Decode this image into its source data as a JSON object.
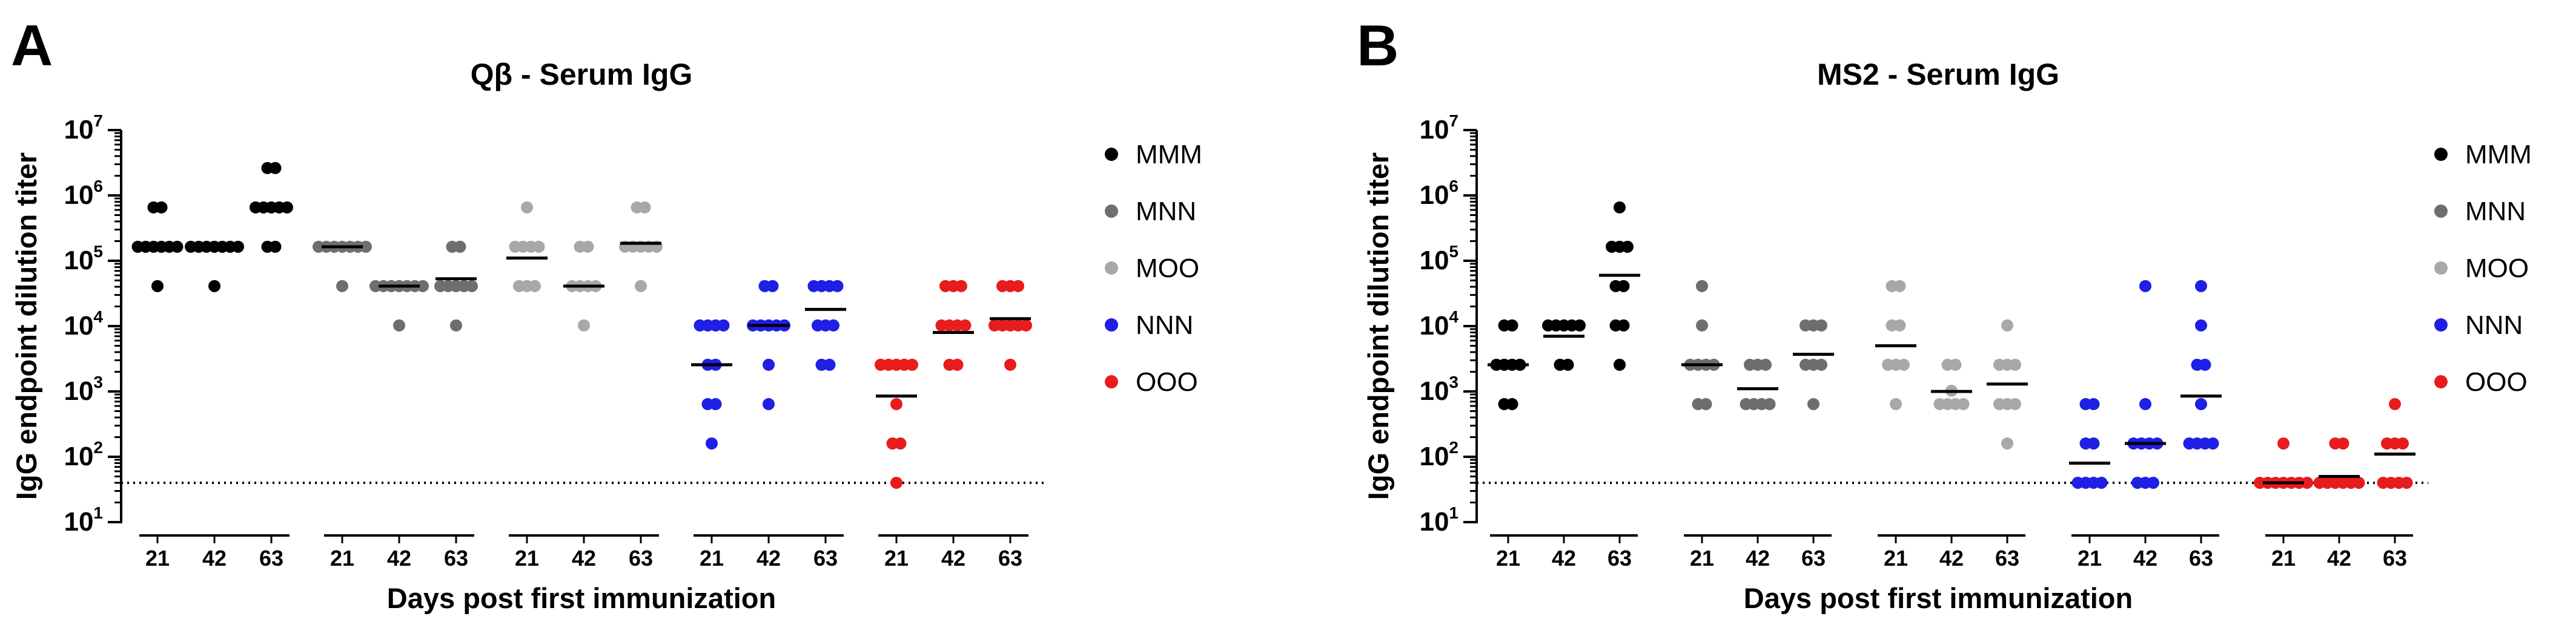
{
  "chart_data": [
    {
      "type": "scatter",
      "panel_letter": "A",
      "title": "Qβ - Serum IgG",
      "xlabel": "Days post first immunization",
      "ylabel": "IgG endpoint dilution titer",
      "yscale": "log10",
      "ylim": [
        10,
        10000000
      ],
      "y_ticks": [
        {
          "base": "10",
          "exp": "1"
        },
        {
          "base": "10",
          "exp": "2"
        },
        {
          "base": "10",
          "exp": "3"
        },
        {
          "base": "10",
          "exp": "4"
        },
        {
          "base": "10",
          "exp": "5"
        },
        {
          "base": "10",
          "exp": "6"
        },
        {
          "base": "10",
          "exp": "7"
        }
      ],
      "detection_limit": 40,
      "days": [
        "21",
        "42",
        "63"
      ],
      "legend_position": "right",
      "series": [
        {
          "name": "MMM",
          "color": "#000000",
          "groups": [
            {
              "day": "21",
              "points": [
                40960,
                163840,
                163840,
                163840,
                163840,
                163840,
                163840,
                655360,
                655360
              ],
              "mean": 163840
            },
            {
              "day": "42",
              "points": [
                40960,
                163840,
                163840,
                163840,
                163840,
                163840,
                163840,
                163840
              ],
              "mean": 163840
            },
            {
              "day": "63",
              "points": [
                163840,
                163840,
                655360,
                655360,
                655360,
                655360,
                655360,
                2621440,
                2621440
              ],
              "mean": 655360
            }
          ]
        },
        {
          "name": "MNN",
          "color": "#6e6e6e",
          "groups": [
            {
              "day": "21",
              "points": [
                40960,
                163840,
                163840,
                163840,
                163840,
                163840,
                163840,
                163840
              ],
              "mean": 163840
            },
            {
              "day": "42",
              "points": [
                10240,
                40960,
                40960,
                40960,
                40960,
                40960,
                40960,
                40960
              ],
              "mean": 40960
            },
            {
              "day": "63",
              "points": [
                10240,
                40960,
                40960,
                40960,
                40960,
                40960,
                163840,
                163840
              ],
              "mean": 53000
            }
          ]
        },
        {
          "name": "MOO",
          "color": "#a8a8a8",
          "groups": [
            {
              "day": "21",
              "points": [
                40960,
                40960,
                40960,
                163840,
                163840,
                163840,
                163840,
                655360
              ],
              "mean": 110000
            },
            {
              "day": "42",
              "points": [
                10240,
                40960,
                40960,
                40960,
                40960,
                163840,
                163840
              ],
              "mean": 40960
            },
            {
              "day": "63",
              "points": [
                40960,
                163840,
                163840,
                163840,
                163840,
                163840,
                655360,
                655360
              ],
              "mean": 185000
            }
          ]
        },
        {
          "name": "NNN",
          "color": "#1f1fe6",
          "groups": [
            {
              "day": "21",
              "points": [
                160,
                640,
                640,
                2560,
                2560,
                10240,
                10240,
                10240,
                10240
              ],
              "mean": 2560
            },
            {
              "day": "42",
              "points": [
                640,
                2560,
                10240,
                10240,
                10240,
                10240,
                10240,
                40960,
                40960
              ],
              "mean": 10240
            },
            {
              "day": "63",
              "points": [
                2560,
                2560,
                10240,
                10240,
                10240,
                40960,
                40960,
                40960,
                40960
              ],
              "mean": 18000
            }
          ]
        },
        {
          "name": "OOO",
          "color": "#e81c1c",
          "groups": [
            {
              "day": "21",
              "points": [
                40,
                160,
                160,
                640,
                2560,
                2560,
                2560,
                2560,
                2560
              ],
              "mean": 850
            },
            {
              "day": "42",
              "points": [
                2560,
                2560,
                10240,
                10240,
                10240,
                10240,
                40960,
                40960,
                40960
              ],
              "mean": 8000
            },
            {
              "day": "63",
              "points": [
                2560,
                10240,
                10240,
                10240,
                10240,
                10240,
                40960,
                40960,
                40960
              ],
              "mean": 13000
            }
          ]
        }
      ]
    },
    {
      "type": "scatter",
      "panel_letter": "B",
      "title": "MS2 - Serum IgG",
      "xlabel": "Days post first immunization",
      "ylabel": "IgG endpoint dilution titer",
      "yscale": "log10",
      "ylim": [
        10,
        10000000
      ],
      "y_ticks": [
        {
          "base": "10",
          "exp": "1"
        },
        {
          "base": "10",
          "exp": "2"
        },
        {
          "base": "10",
          "exp": "3"
        },
        {
          "base": "10",
          "exp": "4"
        },
        {
          "base": "10",
          "exp": "5"
        },
        {
          "base": "10",
          "exp": "6"
        },
        {
          "base": "10",
          "exp": "7"
        }
      ],
      "detection_limit": 40,
      "days": [
        "21",
        "42",
        "63"
      ],
      "legend_position": "right",
      "series": [
        {
          "name": "MMM",
          "color": "#000000",
          "groups": [
            {
              "day": "21",
              "points": [
                640,
                640,
                2560,
                2560,
                2560,
                2560,
                10240,
                10240
              ],
              "mean": 2560
            },
            {
              "day": "42",
              "points": [
                2560,
                2560,
                10240,
                10240,
                10240,
                10240,
                10240
              ],
              "mean": 7000
            },
            {
              "day": "63",
              "points": [
                2560,
                10240,
                10240,
                40960,
                40960,
                163840,
                163840,
                163840,
                655360
              ],
              "mean": 60000
            }
          ]
        },
        {
          "name": "MNN",
          "color": "#6e6e6e",
          "groups": [
            {
              "day": "21",
              "points": [
                640,
                640,
                2560,
                2560,
                2560,
                2560,
                10240,
                40960
              ],
              "mean": 2560
            },
            {
              "day": "42",
              "points": [
                640,
                640,
                640,
                640,
                2560,
                2560,
                2560
              ],
              "mean": 1100
            },
            {
              "day": "63",
              "points": [
                640,
                2560,
                2560,
                2560,
                10240,
                10240,
                10240
              ],
              "mean": 3700
            }
          ]
        },
        {
          "name": "MOO",
          "color": "#a8a8a8",
          "groups": [
            {
              "day": "21",
              "points": [
                640,
                2560,
                2560,
                2560,
                10240,
                10240,
                40960,
                40960
              ],
              "mean": 5000
            },
            {
              "day": "42",
              "points": [
                640,
                640,
                640,
                640,
                1024,
                2560,
                2560
              ],
              "mean": 1000
            },
            {
              "day": "63",
              "points": [
                160,
                640,
                640,
                640,
                2560,
                2560,
                2560,
                10240
              ],
              "mean": 1300
            }
          ]
        },
        {
          "name": "NNN",
          "color": "#1f1fe6",
          "groups": [
            {
              "day": "21",
              "points": [
                40,
                40,
                40,
                40,
                160,
                160,
                640,
                640
              ],
              "mean": 80
            },
            {
              "day": "42",
              "points": [
                40,
                40,
                40,
                160,
                160,
                160,
                160,
                640,
                40960
              ],
              "mean": 160
            },
            {
              "day": "63",
              "points": [
                160,
                160,
                160,
                160,
                640,
                2560,
                2560,
                10240,
                40960
              ],
              "mean": 850
            }
          ]
        },
        {
          "name": "OOO",
          "color": "#e81c1c",
          "groups": [
            {
              "day": "21",
              "points": [
                40,
                40,
                40,
                40,
                40,
                40,
                40,
                160
              ],
              "mean": 40
            },
            {
              "day": "42",
              "points": [
                40,
                40,
                40,
                40,
                40,
                40,
                160,
                160
              ],
              "mean": 50
            },
            {
              "day": "63",
              "points": [
                40,
                40,
                40,
                40,
                160,
                160,
                160,
                640
              ],
              "mean": 110
            }
          ]
        }
      ]
    }
  ]
}
